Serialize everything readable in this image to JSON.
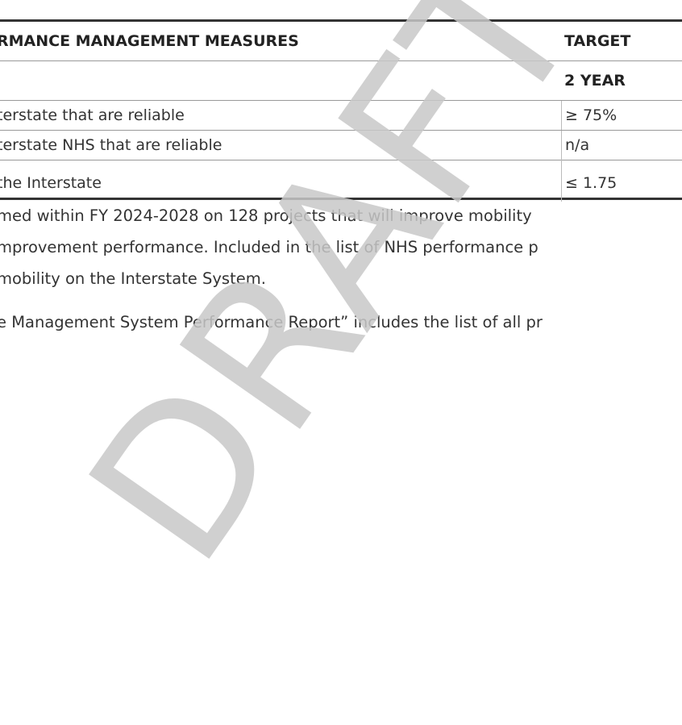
{
  "table": {
    "header": [
      "RMANCE MANAGEMENT MEASURES",
      "TARGET"
    ],
    "subheader": [
      "",
      "2 YEAR"
    ],
    "rows": [
      [
        "terstate that are reliable",
        "≥ 75%"
      ],
      [
        "terstate NHS that are reliable",
        "n/a"
      ],
      [
        "the Interstate",
        "≤ 1.75"
      ]
    ]
  },
  "paragraphs": [
    [
      "med within FY 2024-2028 on 128 projects that will improve mobility",
      "mprovement performance.  Included in the list of NHS performance p",
      "mobility on the Interstate System."
    ],
    [
      "e Management System Performance Report” includes the list of all pr"
    ]
  ],
  "watermark": "DRAFT"
}
